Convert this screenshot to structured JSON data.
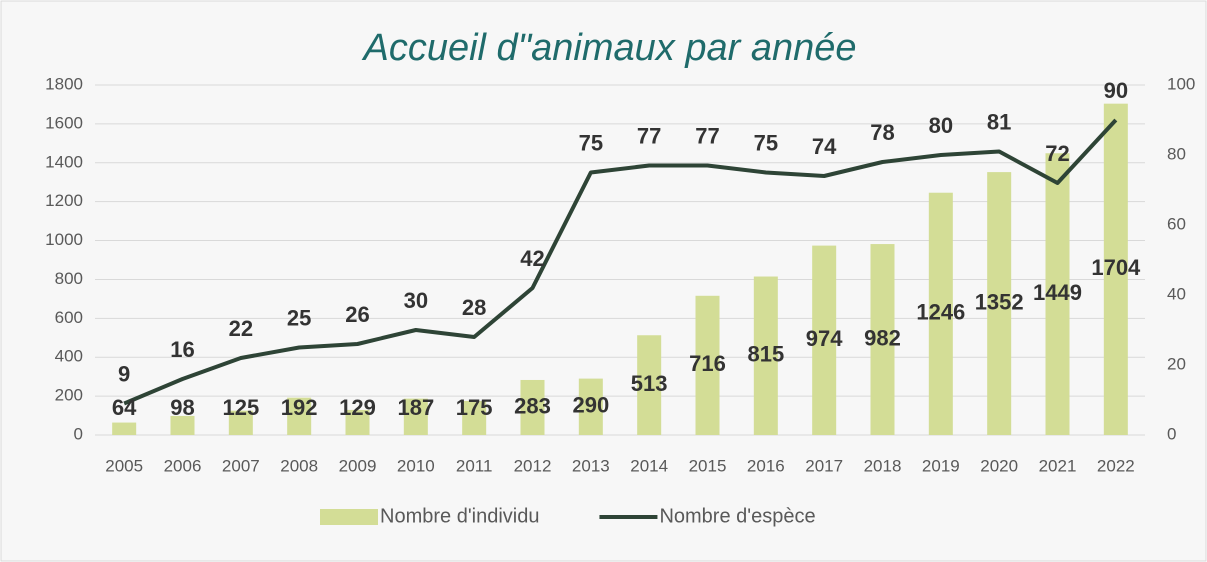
{
  "chart_data": {
    "type": "bar",
    "title": "Accueil d\"animaux par année",
    "categories": [
      "2005",
      "2006",
      "2007",
      "2008",
      "2009",
      "2010",
      "2011",
      "2012",
      "2013",
      "2014",
      "2015",
      "2016",
      "2017",
      "2018",
      "2019",
      "2020",
      "2021",
      "2022"
    ],
    "series": [
      {
        "name": "Nombre d'individu",
        "type": "bar",
        "color": "#d3dd96",
        "axis": "y",
        "values": [
          64,
          98,
          125,
          192,
          129,
          187,
          175,
          283,
          290,
          513,
          716,
          815,
          974,
          982,
          1246,
          1352,
          1449,
          1704
        ]
      },
      {
        "name": "Nombre d'espèce",
        "type": "line",
        "color": "#2e4436",
        "axis": "y2",
        "values": [
          9,
          16,
          22,
          25,
          26,
          30,
          28,
          42,
          75,
          77,
          77,
          75,
          74,
          78,
          80,
          81,
          72,
          90
        ]
      }
    ],
    "ylim": [
      0,
      1800
    ],
    "yticks": [
      0,
      200,
      400,
      600,
      800,
      1000,
      1200,
      1400,
      1600,
      1800
    ],
    "y2lim": [
      0,
      100
    ],
    "y2ticks": [
      0,
      20,
      40,
      60,
      80,
      100
    ],
    "grid": true,
    "legend": "bottom"
  }
}
